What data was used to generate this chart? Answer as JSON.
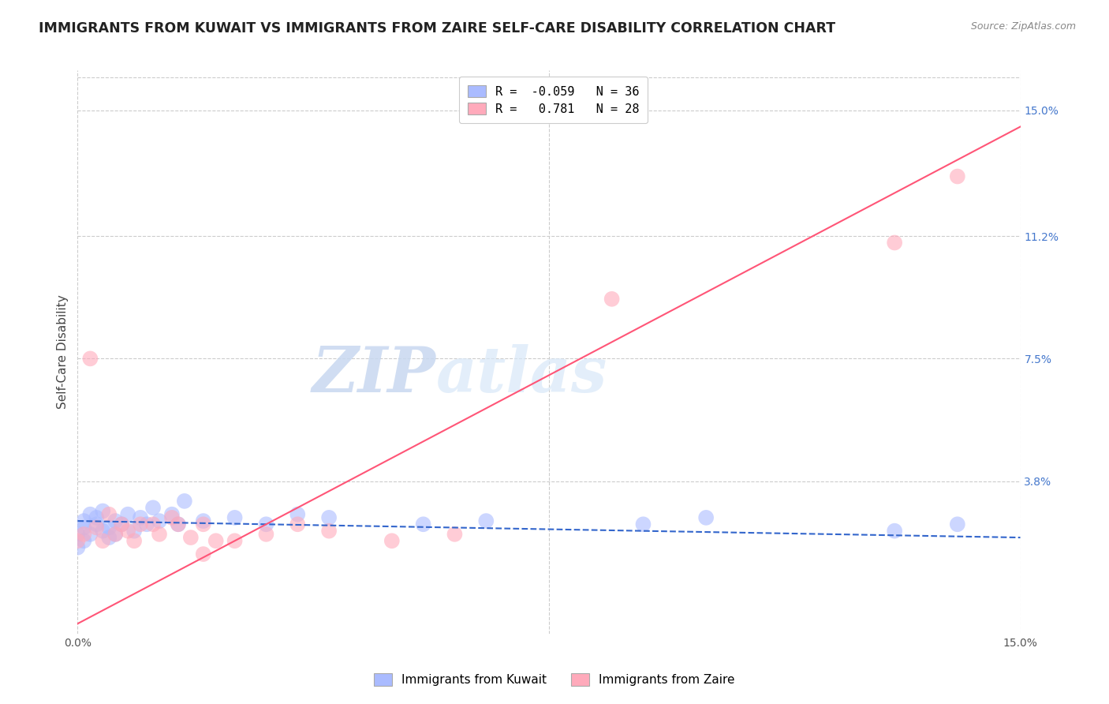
{
  "title": "IMMIGRANTS FROM KUWAIT VS IMMIGRANTS FROM ZAIRE SELF-CARE DISABILITY CORRELATION CHART",
  "source": "Source: ZipAtlas.com",
  "ylabel": "Self-Care Disability",
  "ytick_vals": [
    0.038,
    0.075,
    0.112,
    0.15
  ],
  "ytick_labels": [
    "3.8%",
    "7.5%",
    "11.2%",
    "15.0%"
  ],
  "xlim": [
    0.0,
    0.15
  ],
  "ylim": [
    -0.008,
    0.162
  ],
  "legend_kuwait_R": -0.059,
  "legend_kuwait_N": 36,
  "legend_zaire_R": 0.781,
  "legend_zaire_N": 28,
  "kuwait_color": "#aabbff",
  "zaire_color": "#ffaabb",
  "kuwait_line_color": "#3366cc",
  "zaire_line_color": "#ff5577",
  "grid_color": "#cccccc",
  "background": "#ffffff",
  "kuwait_x": [
    0.0,
    0.0,
    0.001,
    0.001,
    0.001,
    0.002,
    0.002,
    0.003,
    0.003,
    0.004,
    0.004,
    0.005,
    0.005,
    0.006,
    0.006,
    0.007,
    0.008,
    0.009,
    0.01,
    0.011,
    0.012,
    0.013,
    0.015,
    0.016,
    0.017,
    0.02,
    0.025,
    0.03,
    0.035,
    0.04,
    0.055,
    0.065,
    0.09,
    0.1,
    0.13,
    0.14
  ],
  "kuwait_y": [
    0.022,
    0.018,
    0.024,
    0.026,
    0.02,
    0.028,
    0.022,
    0.025,
    0.027,
    0.023,
    0.029,
    0.024,
    0.021,
    0.026,
    0.022,
    0.025,
    0.028,
    0.023,
    0.027,
    0.025,
    0.03,
    0.026,
    0.028,
    0.025,
    0.032,
    0.026,
    0.027,
    0.025,
    0.028,
    0.027,
    0.025,
    0.026,
    0.025,
    0.027,
    0.023,
    0.025
  ],
  "zaire_x": [
    0.0,
    0.001,
    0.002,
    0.003,
    0.004,
    0.005,
    0.006,
    0.007,
    0.008,
    0.009,
    0.01,
    0.012,
    0.013,
    0.015,
    0.016,
    0.018,
    0.02,
    0.022,
    0.025,
    0.03,
    0.035,
    0.04,
    0.05,
    0.06,
    0.085,
    0.13,
    0.14,
    0.02
  ],
  "zaire_y": [
    0.02,
    0.022,
    0.075,
    0.024,
    0.02,
    0.028,
    0.022,
    0.025,
    0.023,
    0.02,
    0.025,
    0.025,
    0.022,
    0.027,
    0.025,
    0.021,
    0.025,
    0.02,
    0.02,
    0.022,
    0.025,
    0.023,
    0.02,
    0.022,
    0.093,
    0.11,
    0.13,
    0.016
  ],
  "kuwait_line_y0": 0.026,
  "kuwait_line_y1": 0.021,
  "zaire_line_y0": -0.005,
  "zaire_line_y1": 0.145
}
